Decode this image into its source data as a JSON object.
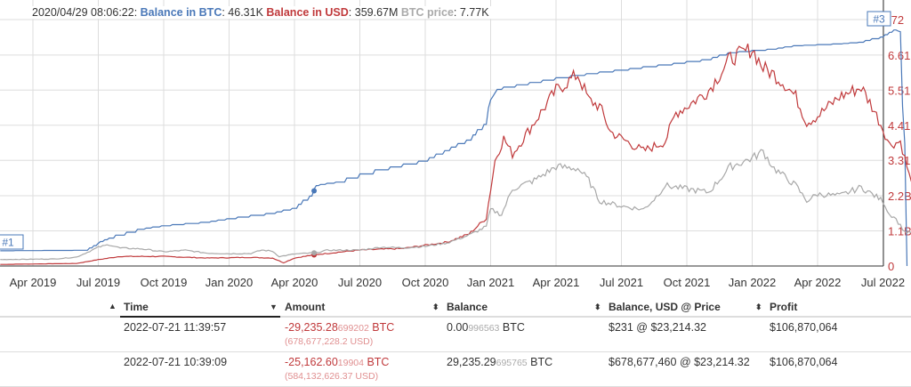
{
  "legend": {
    "timestamp": "2020/04/29 08:06:22:",
    "btc_label": "Balance in BTC",
    "btc_value": ": 46.31K",
    "usd_label": "Balance in USD",
    "usd_value": ": 359.67M",
    "price_label": "BTC price",
    "price_value": ": 7.77K"
  },
  "markers": [
    "#1",
    "#3"
  ],
  "colors": {
    "btc": "#4a78b8",
    "usd": "#c0393b",
    "price": "#a8a8a8",
    "grid": "#dddddd"
  },
  "chart_data": {
    "type": "line",
    "x_ticks": [
      "Apr 2019",
      "Jul 2019",
      "Oct 2019",
      "Jan 2020",
      "Apr 2020",
      "Jul 2020",
      "Oct 2020",
      "Jan 2021",
      "Apr 2021",
      "Jul 2021",
      "Oct 2021",
      "Jan 2022",
      "Apr 2022",
      "Jul 2022"
    ],
    "y_ticks_right": [
      "0",
      "1.1B",
      "2.2B",
      "3.31",
      "4.41",
      "5.51",
      "6.61",
      ".72"
    ],
    "y_right_values": [
      0,
      1.1,
      2.2,
      3.31,
      4.41,
      5.51,
      6.61,
      7.72
    ],
    "x_unit": "months since 2019-03-01",
    "series": [
      {
        "name": "Balance in BTC",
        "unit": "K BTC",
        "points": [
          [
            -0.5,
            8.7
          ],
          [
            3.5,
            9
          ],
          [
            4,
            13
          ],
          [
            4.5,
            16
          ],
          [
            6,
            21
          ],
          [
            7,
            23
          ],
          [
            9,
            25
          ],
          [
            10,
            27
          ],
          [
            12,
            30
          ],
          [
            13,
            33
          ],
          [
            13.8,
            40
          ],
          [
            14,
            46
          ],
          [
            15,
            48
          ],
          [
            17,
            55
          ],
          [
            19,
            60
          ],
          [
            20,
            66
          ],
          [
            21,
            72
          ],
          [
            21.8,
            81
          ],
          [
            22,
            95
          ],
          [
            22.3,
            101
          ],
          [
            24,
            105
          ],
          [
            26,
            109
          ],
          [
            28,
            112
          ],
          [
            30,
            115
          ],
          [
            32,
            118
          ],
          [
            33,
            122
          ],
          [
            35,
            124
          ],
          [
            36,
            126
          ],
          [
            38,
            127
          ],
          [
            39,
            128
          ],
          [
            40,
            131
          ],
          [
            40.6,
            135
          ],
          [
            40.8,
            134
          ],
          [
            41.0,
            70
          ],
          [
            41.1,
            0
          ]
        ]
      },
      {
        "name": "Balance in USD",
        "unit": "B USD",
        "points": [
          [
            -0.5,
            0.05
          ],
          [
            3,
            0.08
          ],
          [
            4,
            0.2
          ],
          [
            5,
            0.3
          ],
          [
            7,
            0.3
          ],
          [
            9,
            0.25
          ],
          [
            11,
            0.27
          ],
          [
            12,
            0.25
          ],
          [
            12.5,
            0.1
          ],
          [
            13,
            0.25
          ],
          [
            14,
            0.36
          ],
          [
            16,
            0.5
          ],
          [
            18,
            0.55
          ],
          [
            20,
            0.75
          ],
          [
            21,
            1.0
          ],
          [
            21.8,
            1.5
          ],
          [
            22.2,
            3.3
          ],
          [
            22.6,
            4.0
          ],
          [
            23,
            3.5
          ],
          [
            24,
            4.5
          ],
          [
            25,
            5.5
          ],
          [
            26,
            6.0
          ],
          [
            26.5,
            5.2
          ],
          [
            27,
            5.0
          ],
          [
            27.5,
            4.2
          ],
          [
            28,
            4.0
          ],
          [
            29,
            3.6
          ],
          [
            30,
            3.9
          ],
          [
            30.5,
            4.8
          ],
          [
            31,
            5.0
          ],
          [
            32,
            5.5
          ],
          [
            33,
            6.5
          ],
          [
            34,
            6.8
          ],
          [
            34.5,
            6.2
          ],
          [
            35,
            6.0
          ],
          [
            35.5,
            5.7
          ],
          [
            36,
            5.3
          ],
          [
            36.5,
            4.5
          ],
          [
            37,
            4.7
          ],
          [
            38,
            5.3
          ],
          [
            39,
            5.6
          ],
          [
            39.5,
            5.0
          ],
          [
            40,
            4.3
          ],
          [
            40.3,
            3.8
          ],
          [
            40.8,
            3.9
          ],
          [
            41.3,
            2.6
          ],
          [
            42,
            2.8
          ],
          [
            42.5,
            2.6
          ],
          [
            42.9,
            1.6
          ],
          [
            43,
            0
          ]
        ]
      },
      {
        "name": "BTC price",
        "unit": "K USD",
        "points": [
          [
            -0.5,
            3.8
          ],
          [
            2,
            4.1
          ],
          [
            3,
            5.2
          ],
          [
            3.5,
            8
          ],
          [
            4,
            11
          ],
          [
            4.5,
            12.5
          ],
          [
            5,
            10.5
          ],
          [
            6,
            10
          ],
          [
            7,
            8.3
          ],
          [
            8,
            9.2
          ],
          [
            9,
            7.5
          ],
          [
            10,
            7.2
          ],
          [
            11,
            7.3
          ],
          [
            11.5,
            9.3
          ],
          [
            12,
            8.6
          ],
          [
            12.3,
            5.5
          ],
          [
            13,
            7
          ],
          [
            14,
            7.77
          ],
          [
            14.5,
            9.2
          ],
          [
            16,
            9.3
          ],
          [
            17,
            11
          ],
          [
            18,
            10.6
          ],
          [
            19,
            11.5
          ],
          [
            20,
            13.5
          ],
          [
            21,
            18
          ],
          [
            21.8,
            23
          ],
          [
            22,
            33
          ],
          [
            22.5,
            30
          ],
          [
            23,
            45
          ],
          [
            24,
            50
          ],
          [
            25,
            58
          ],
          [
            26,
            57
          ],
          [
            26.5,
            50
          ],
          [
            27,
            38
          ],
          [
            28,
            35
          ],
          [
            29,
            33
          ],
          [
            29.5,
            39
          ],
          [
            30,
            47
          ],
          [
            31,
            45
          ],
          [
            32,
            43
          ],
          [
            33,
            58
          ],
          [
            34,
            63
          ],
          [
            34.5,
            67
          ],
          [
            35,
            57
          ],
          [
            36,
            47
          ],
          [
            36.5,
            38
          ],
          [
            37,
            42
          ],
          [
            38,
            41
          ],
          [
            39,
            46
          ],
          [
            40,
            38
          ],
          [
            40.3,
            30
          ],
          [
            40.5,
            29
          ],
          [
            41,
            20
          ],
          [
            41.5,
            19
          ],
          [
            42,
            21
          ],
          [
            42.6,
            23
          ]
        ]
      }
    ]
  },
  "table": {
    "headers": [
      "Time",
      "Amount",
      "Balance",
      "Balance, USD @ Price",
      "Profit"
    ],
    "rows": [
      {
        "time": "2022-07-21 11:39:57",
        "amount_main": "-29,235.28",
        "amount_dec": "699202",
        "amount_unit": " BTC",
        "amount_usd": "(678,677,228.2 USD)",
        "balance_main": "0.00",
        "balance_dec": "996563",
        "balance_unit": " BTC",
        "balance_usd": "$231 @ $23,214.32",
        "profit": "$106,870,064"
      },
      {
        "time": "2022-07-21 10:39:09",
        "amount_main": "-25,162.60",
        "amount_dec": "19904",
        "amount_unit": " BTC",
        "amount_usd": "(584,132,626.37 USD)",
        "balance_main": "29,235.29",
        "balance_dec": "695765",
        "balance_unit": " BTC",
        "balance_usd": "$678,677,460 @ $23,214.32",
        "profit": "$106,870,064"
      }
    ]
  }
}
